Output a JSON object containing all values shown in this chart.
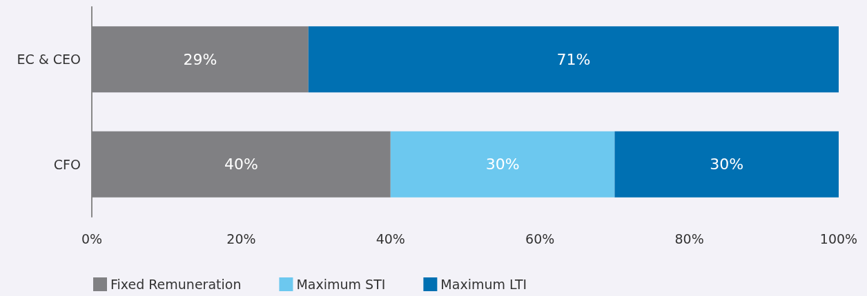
{
  "chart_data": {
    "type": "bar",
    "orientation": "horizontal",
    "stacked": true,
    "categories": [
      "EC & CEO",
      "CFO"
    ],
    "series": [
      {
        "name": "Fixed Remuneration",
        "color": "#808083",
        "values": [
          29,
          40
        ],
        "value_labels": [
          "29%",
          "40%"
        ]
      },
      {
        "name": "Maximum STI",
        "color": "#6cc8ef",
        "values": [
          null,
          30
        ],
        "value_labels": [
          null,
          "30%"
        ]
      },
      {
        "name": "Maximum LTI",
        "color": "#0070b2",
        "values": [
          71,
          30
        ],
        "value_labels": [
          "71%",
          "30%"
        ]
      }
    ],
    "xlim": [
      0,
      100
    ],
    "xticks": [
      {
        "value": 0,
        "label": "0%"
      },
      {
        "value": 20,
        "label": "20%"
      },
      {
        "value": 40,
        "label": "40%"
      },
      {
        "value": 60,
        "label": "60%"
      },
      {
        "value": 80,
        "label": "80%"
      },
      {
        "value": 100,
        "label": "100%"
      }
    ],
    "grid": false,
    "legend": "bottom"
  }
}
